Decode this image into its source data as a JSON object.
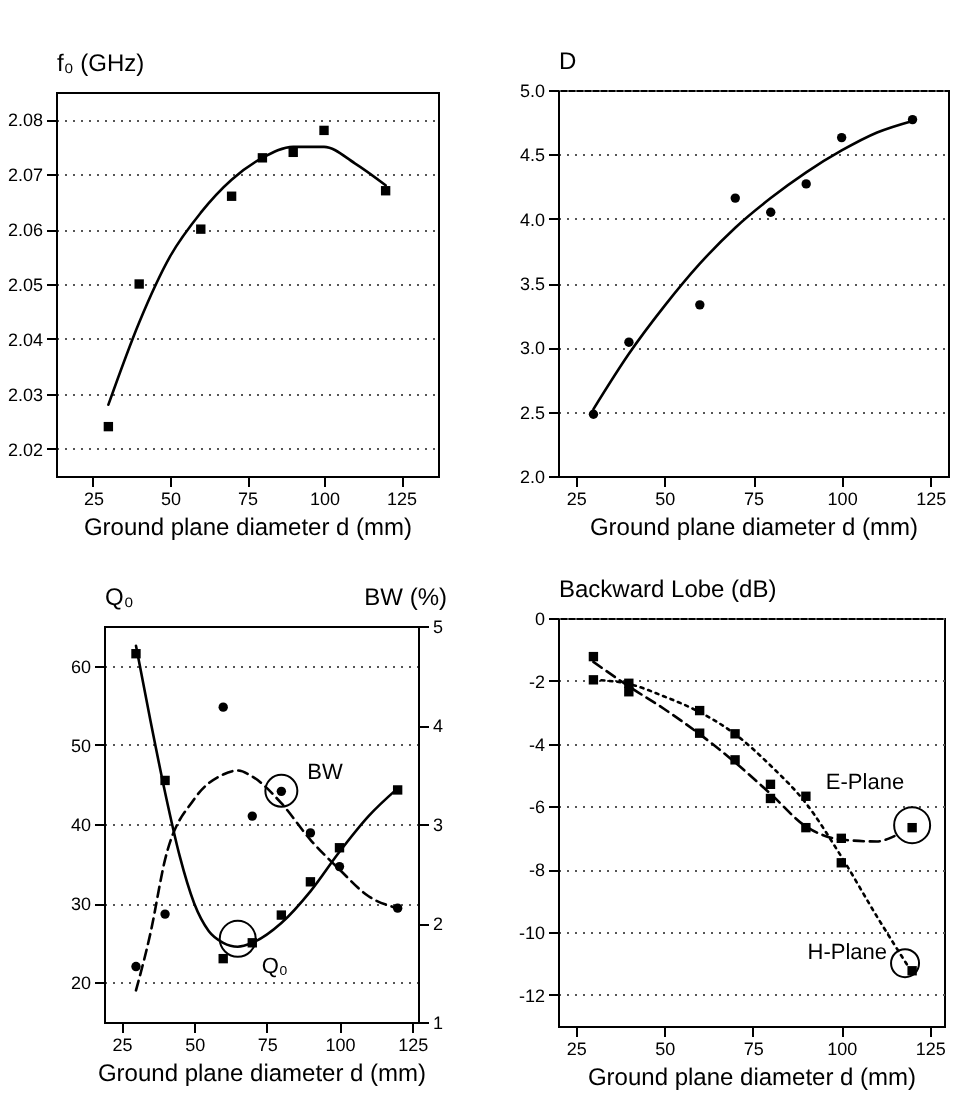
{
  "chart_data": [
    {
      "type": "scatter",
      "ylabel": "f₀ (GHz)",
      "xlabel": "Ground plane diameter d (mm)",
      "xlim": [
        13,
        137
      ],
      "xticks": [
        25,
        50,
        75,
        100,
        125
      ],
      "ylim": [
        2.015,
        2.085
      ],
      "yticks": [
        2.02,
        2.03,
        2.04,
        2.05,
        2.06,
        2.07,
        2.08
      ],
      "grid": "y",
      "series": [
        {
          "marker": "square",
          "color": "#000000",
          "x": [
            30,
            40,
            60,
            70,
            80,
            90,
            100,
            120
          ],
          "values": [
            2.024,
            2.05,
            2.06,
            2.066,
            2.073,
            2.074,
            2.078,
            2.067
          ]
        },
        {
          "type": "line",
          "marker": "none",
          "line_style": "solid",
          "color": "#000000",
          "x": [
            30,
            40,
            50,
            60,
            70,
            80,
            90,
            100,
            110,
            120
          ],
          "values": [
            2.028,
            2.043,
            2.055,
            2.063,
            2.069,
            2.073,
            2.075,
            2.075,
            2.072,
            2.068
          ]
        }
      ]
    },
    {
      "type": "scatter",
      "ylabel": "D",
      "xlabel": "Ground plane diameter  d (mm)",
      "xlim": [
        20,
        130
      ],
      "xticks": [
        25,
        50,
        75,
        100,
        125
      ],
      "ylim": [
        2,
        5
      ],
      "yticks": [
        {
          "value": 2,
          "label": "2.0"
        },
        2.5,
        {
          "value": 3,
          "label": "3.0"
        },
        3.5,
        {
          "value": 4,
          "label": "4.0"
        },
        4.5,
        {
          "value": 5,
          "label": "5.0"
        }
      ],
      "grid": "y",
      "series": [
        {
          "marker": "circle",
          "color": "#000000",
          "x": [
            30,
            40,
            60,
            70,
            80,
            90,
            100,
            120
          ],
          "values": [
            2.48,
            3.04,
            3.33,
            4.16,
            4.05,
            4.27,
            4.63,
            4.77
          ]
        },
        {
          "type": "line",
          "marker": "none",
          "line_style": "solid",
          "color": "#000000",
          "x": [
            30,
            40,
            50,
            60,
            70,
            80,
            90,
            100,
            110,
            120
          ],
          "values": [
            2.52,
            2.95,
            3.32,
            3.65,
            3.93,
            4.16,
            4.36,
            4.53,
            4.67,
            4.76
          ]
        }
      ]
    },
    {
      "type": "scatter",
      "ylabel": "Q₀",
      "y2label": "BW (%)",
      "xlabel": "Ground plane diameter  d (mm)",
      "xlim": [
        19,
        127
      ],
      "xticks": [
        25,
        50,
        75,
        100,
        125
      ],
      "ylim": [
        15,
        65
      ],
      "yticks": [
        20,
        30,
        40,
        50,
        60
      ],
      "y2lim": [
        1,
        5
      ],
      "y2ticks": [
        1,
        2,
        3,
        4,
        5
      ],
      "grid": "y",
      "annotations": [
        {
          "text": "BW",
          "x": 80,
          "y": 44.2
        },
        {
          "text": "Q₀",
          "x": 65,
          "y": 25.5
        }
      ],
      "series": [
        {
          "marker": "square",
          "color": "#000000",
          "x": [
            30,
            40,
            60,
            70,
            80,
            90,
            100,
            120
          ],
          "values": [
            61.5,
            45.5,
            23,
            25,
            28.5,
            32.7,
            37,
            44.3
          ]
        },
        {
          "type": "line",
          "marker": "none",
          "line_style": "solid",
          "color": "#000000",
          "x": [
            30,
            35,
            40,
            45,
            50,
            55,
            60,
            65,
            70,
            80,
            90,
            100,
            110,
            120
          ],
          "values": [
            62.5,
            53,
            44,
            36,
            30,
            26.5,
            25,
            24.5,
            25,
            27.5,
            31.5,
            36.5,
            41,
            44.5
          ]
        },
        {
          "axis": "y2",
          "marker": "circle",
          "color": "#000000",
          "x": [
            30,
            40,
            60,
            70,
            80,
            90,
            100,
            120
          ],
          "values": [
            1.56,
            2.09,
            4.18,
            3.08,
            3.33,
            2.91,
            2.57,
            2.15
          ]
        },
        {
          "type": "line",
          "axis": "y2",
          "marker": "none",
          "line_style": "dashed",
          "color": "#000000",
          "x": [
            30,
            35,
            40,
            50,
            60,
            65,
            70,
            80,
            90,
            100,
            110,
            120
          ],
          "values": [
            1.32,
            1.9,
            2.64,
            3.25,
            3.5,
            3.54,
            3.48,
            3.21,
            2.84,
            2.54,
            2.27,
            2.15
          ]
        }
      ]
    },
    {
      "type": "scatter",
      "ylabel": "Backward Lobe (dB)",
      "xlabel": "Ground plane diameter d  (mm)",
      "xlim": [
        20,
        129
      ],
      "xticks": [
        25,
        50,
        75,
        100,
        125
      ],
      "ylim": [
        -13,
        0
      ],
      "yticks": [
        -12,
        -10,
        -8,
        -6,
        -4,
        -2,
        0
      ],
      "grid": "y",
      "annotations": [
        {
          "text": "E-Plane",
          "x": 120,
          "y": -6.6
        },
        {
          "text": "H-Plane",
          "x": 118,
          "y": -11
        }
      ],
      "series": [
        {
          "marker": "square",
          "color": "#000000",
          "x": [
            30,
            40,
            60,
            70,
            80,
            90,
            100,
            120
          ],
          "values": [
            -1.23,
            -2.35,
            -3.67,
            -4.52,
            -5.75,
            -6.68,
            -7.02,
            -6.68
          ]
        },
        {
          "type": "line",
          "marker": "none",
          "line_style": "dashed",
          "color": "#000000",
          "x": [
            30,
            40,
            50,
            60,
            70,
            80,
            90,
            100,
            110,
            115
          ],
          "values": [
            -1.4,
            -2.18,
            -2.9,
            -3.7,
            -4.6,
            -5.6,
            -6.64,
            -7.06,
            -7.12,
            -6.95
          ]
        },
        {
          "marker": "square",
          "color": "#000000",
          "x": [
            30,
            40,
            60,
            70,
            80,
            90,
            100,
            120
          ],
          "values": [
            -1.97,
            -2.08,
            -2.95,
            -3.69,
            -5.3,
            -5.68,
            -7.8,
            -11.24
          ]
        },
        {
          "type": "line",
          "marker": "none",
          "line_style": "dotted",
          "color": "#000000",
          "x": [
            30,
            40,
            50,
            60,
            70,
            80,
            90,
            100,
            110,
            120
          ],
          "values": [
            -1.97,
            -2.1,
            -2.5,
            -3.0,
            -3.7,
            -4.7,
            -5.9,
            -7.6,
            -9.5,
            -11.3
          ]
        }
      ]
    }
  ]
}
